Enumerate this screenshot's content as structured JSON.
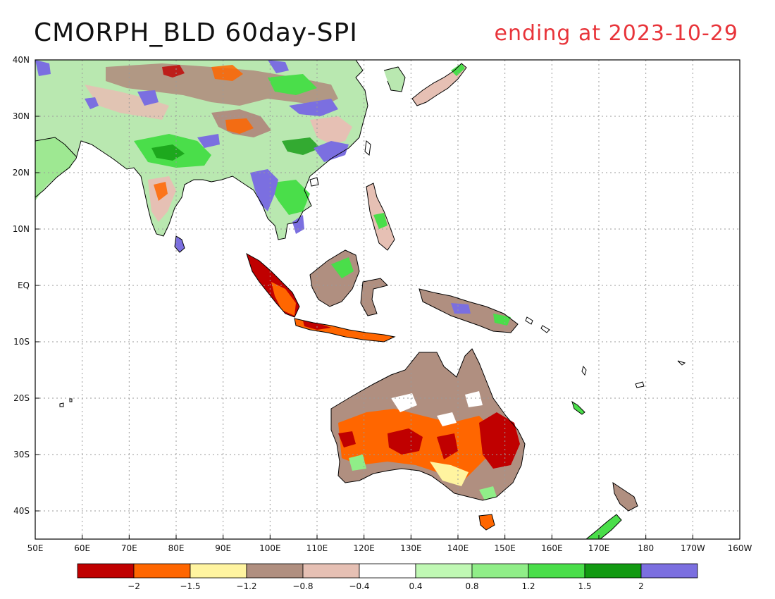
{
  "title": "CMORPH_BLD 60day-SPI",
  "subtitle": "ending at 2023-10-29",
  "map": {
    "lon_range": [
      50,
      200
    ],
    "lat_range": [
      -45,
      40
    ],
    "lon_ticks": [
      {
        "lon": 50,
        "label": "50E"
      },
      {
        "lon": 60,
        "label": "60E"
      },
      {
        "lon": 70,
        "label": "70E"
      },
      {
        "lon": 80,
        "label": "80E"
      },
      {
        "lon": 90,
        "label": "90E"
      },
      {
        "lon": 100,
        "label": "100E"
      },
      {
        "lon": 110,
        "label": "110E"
      },
      {
        "lon": 120,
        "label": "120E"
      },
      {
        "lon": 130,
        "label": "130E"
      },
      {
        "lon": 140,
        "label": "140E"
      },
      {
        "lon": 150,
        "label": "150E"
      },
      {
        "lon": 160,
        "label": "160E"
      },
      {
        "lon": 170,
        "label": "170E"
      },
      {
        "lon": 180,
        "label": "180"
      },
      {
        "lon": 190,
        "label": "170W"
      },
      {
        "lon": 200,
        "label": "160W"
      }
    ],
    "lat_ticks": [
      {
        "lat": 40,
        "label": "40N"
      },
      {
        "lat": 30,
        "label": "30N"
      },
      {
        "lat": 20,
        "label": "20N"
      },
      {
        "lat": 10,
        "label": "10N"
      },
      {
        "lat": 0,
        "label": "EQ"
      },
      {
        "lat": -10,
        "label": "10S"
      },
      {
        "lat": -20,
        "label": "20S"
      },
      {
        "lat": -30,
        "label": "30S"
      },
      {
        "lat": -40,
        "label": "40S"
      }
    ],
    "grid": true
  },
  "legend": {
    "colors": [
      "#c00000",
      "#ff6600",
      "#fff4a0",
      "#b08f80",
      "#e6c0b4",
      "#ffffff",
      "#c0f8b4",
      "#90ee88",
      "#4ade4a",
      "#129a12",
      "#7b6fe0"
    ],
    "labels": [
      "-2",
      "-1.5",
      "-1.2",
      "-0.8",
      "-0.4",
      "0.4",
      "0.8",
      "1.2",
      "1.5",
      "2"
    ]
  }
}
